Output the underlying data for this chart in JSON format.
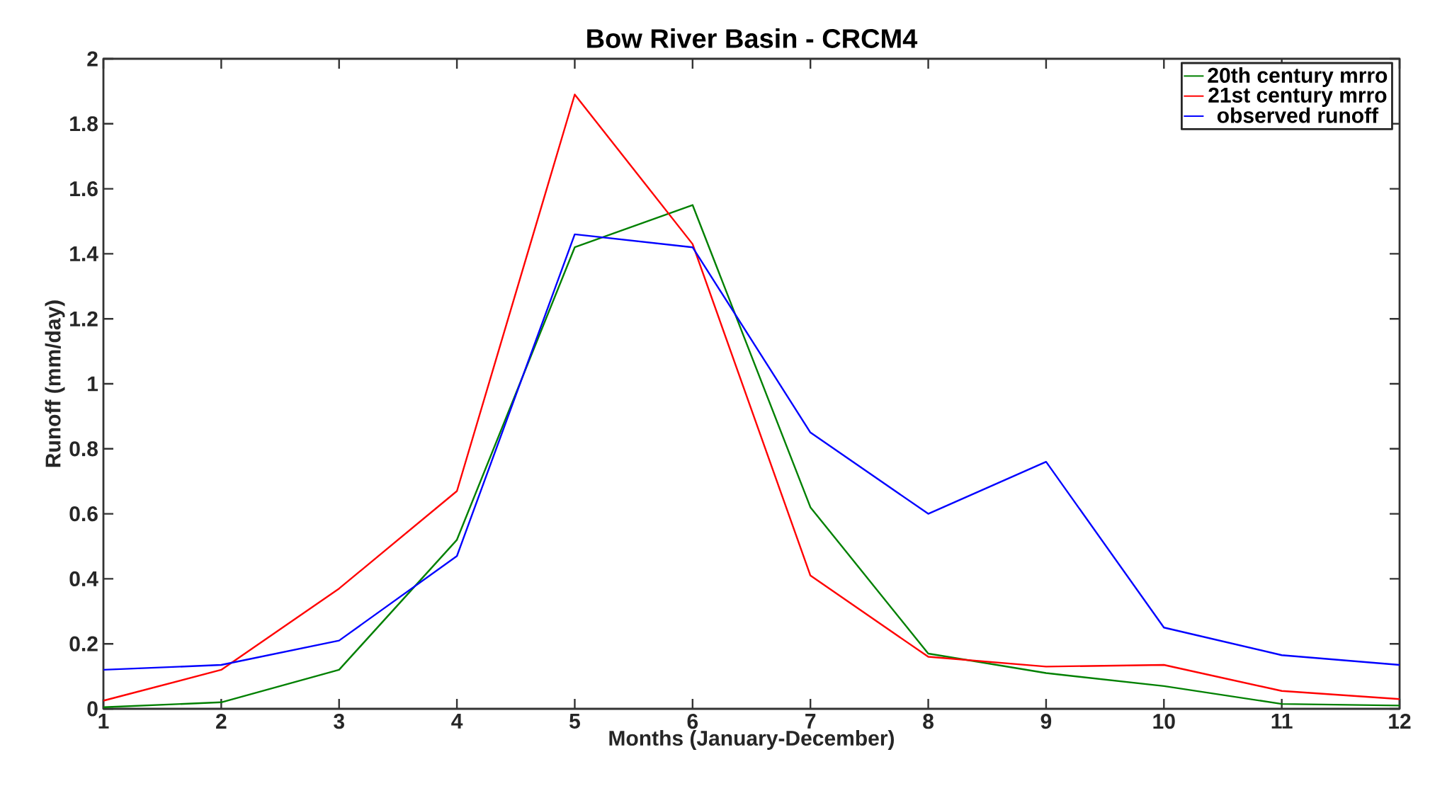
{
  "chart_data": {
    "type": "line",
    "title": "Bow River Basin - CRCM4",
    "xlabel": "Months (January-December)",
    "ylabel": "Runoff (mm/day)",
    "x": [
      1,
      2,
      3,
      4,
      5,
      6,
      7,
      8,
      9,
      10,
      11,
      12
    ],
    "xlim": [
      1,
      12
    ],
    "ylim": [
      0,
      2
    ],
    "xticks": [
      1,
      2,
      3,
      4,
      5,
      6,
      7,
      8,
      9,
      10,
      11,
      12
    ],
    "yticks": [
      0,
      0.2,
      0.4,
      0.6,
      0.8,
      1,
      1.2,
      1.4,
      1.6,
      1.8,
      2
    ],
    "legend": "top right",
    "series": [
      {
        "name": "20th century mrro",
        "color": "#008000",
        "values": [
          0.005,
          0.02,
          0.12,
          0.52,
          1.42,
          1.55,
          0.62,
          0.17,
          0.11,
          0.07,
          0.015,
          0.01
        ]
      },
      {
        "name": "21st century mrro",
        "color": "#ff0000",
        "values": [
          0.025,
          0.12,
          0.37,
          0.67,
          1.89,
          1.43,
          0.41,
          0.16,
          0.13,
          0.135,
          0.055,
          0.03
        ]
      },
      {
        "name": "observed runoff",
        "color": "#0000ff",
        "values": [
          0.12,
          0.135,
          0.21,
          0.47,
          1.46,
          1.42,
          0.85,
          0.6,
          0.76,
          0.25,
          0.165,
          0.135
        ]
      }
    ]
  }
}
